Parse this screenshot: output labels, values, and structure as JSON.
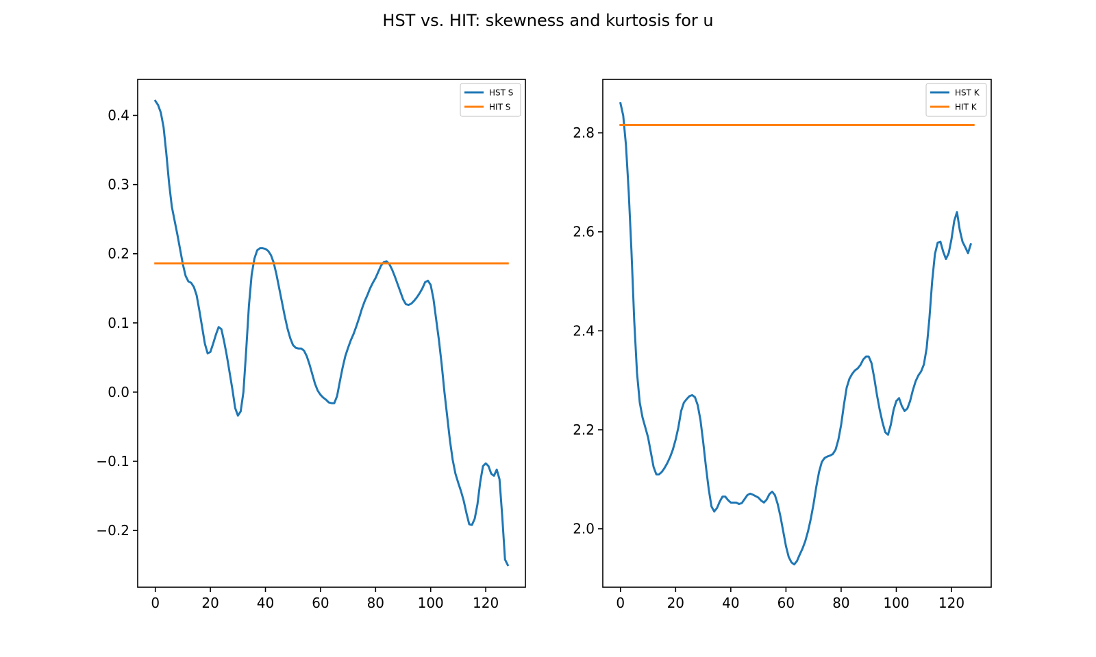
{
  "figure": {
    "title": "HST vs. HIT: skewness and kurtosis for u"
  },
  "chart_data": [
    {
      "type": "line",
      "title": "",
      "xlabel": "",
      "ylabel": "",
      "xlim": [
        -6.4,
        134.4
      ],
      "ylim": [
        -0.282,
        0.452
      ],
      "xticks": [
        0,
        20,
        40,
        60,
        80,
        100,
        120
      ],
      "yticks": [
        -0.2,
        -0.1,
        0.0,
        0.1,
        0.2,
        0.3,
        0.4
      ],
      "ytick_labels": [
        "−0.2",
        "−0.1",
        "0.0",
        "0.1",
        "0.2",
        "0.3",
        "0.4"
      ],
      "legend_position": "upper-right",
      "grid": false,
      "series": [
        {
          "name": "HST S",
          "color": "#1f77b4",
          "points": [
            [
              0,
              0.421
            ],
            [
              1,
              0.415
            ],
            [
              2,
              0.404
            ],
            [
              3,
              0.383
            ],
            [
              4,
              0.345
            ],
            [
              5,
              0.302
            ],
            [
              6,
              0.268
            ],
            [
              8,
              0.228
            ],
            [
              10,
              0.185
            ],
            [
              11,
              0.168
            ],
            [
              12,
              0.16
            ],
            [
              13,
              0.158
            ],
            [
              14,
              0.152
            ],
            [
              15,
              0.14
            ],
            [
              16,
              0.118
            ],
            [
              17,
              0.094
            ],
            [
              18,
              0.07
            ],
            [
              19,
              0.056
            ],
            [
              20,
              0.058
            ],
            [
              21,
              0.07
            ],
            [
              22,
              0.083
            ],
            [
              23,
              0.094
            ],
            [
              24,
              0.091
            ],
            [
              25,
              0.073
            ],
            [
              26,
              0.052
            ],
            [
              27,
              0.028
            ],
            [
              28,
              0.004
            ],
            [
              29,
              -0.023
            ],
            [
              30,
              -0.034
            ],
            [
              31,
              -0.028
            ],
            [
              32,
              0.0
            ],
            [
              33,
              0.06
            ],
            [
              34,
              0.125
            ],
            [
              35,
              0.17
            ],
            [
              36,
              0.193
            ],
            [
              37,
              0.205
            ],
            [
              38,
              0.208
            ],
            [
              39,
              0.208
            ],
            [
              40,
              0.207
            ],
            [
              41,
              0.204
            ],
            [
              42,
              0.198
            ],
            [
              43,
              0.187
            ],
            [
              44,
              0.17
            ],
            [
              45,
              0.15
            ],
            [
              46,
              0.13
            ],
            [
              47,
              0.11
            ],
            [
              48,
              0.092
            ],
            [
              49,
              0.078
            ],
            [
              50,
              0.068
            ],
            [
              51,
              0.064
            ],
            [
              52,
              0.063
            ],
            [
              53,
              0.063
            ],
            [
              54,
              0.06
            ],
            [
              55,
              0.052
            ],
            [
              56,
              0.04
            ],
            [
              57,
              0.026
            ],
            [
              58,
              0.012
            ],
            [
              59,
              0.002
            ],
            [
              60,
              -0.004
            ],
            [
              61,
              -0.008
            ],
            [
              62,
              -0.011
            ],
            [
              63,
              -0.015
            ],
            [
              64,
              -0.016
            ],
            [
              65,
              -0.016
            ],
            [
              66,
              -0.006
            ],
            [
              67,
              0.015
            ],
            [
              68,
              0.035
            ],
            [
              69,
              0.052
            ],
            [
              70,
              0.064
            ],
            [
              71,
              0.075
            ],
            [
              72,
              0.084
            ],
            [
              73,
              0.095
            ],
            [
              74,
              0.107
            ],
            [
              75,
              0.12
            ],
            [
              76,
              0.131
            ],
            [
              77,
              0.14
            ],
            [
              78,
              0.15
            ],
            [
              79,
              0.158
            ],
            [
              80,
              0.165
            ],
            [
              81,
              0.174
            ],
            [
              82,
              0.183
            ],
            [
              83,
              0.188
            ],
            [
              84,
              0.189
            ],
            [
              85,
              0.185
            ],
            [
              86,
              0.177
            ],
            [
              87,
              0.167
            ],
            [
              88,
              0.156
            ],
            [
              89,
              0.145
            ],
            [
              90,
              0.134
            ],
            [
              91,
              0.127
            ],
            [
              92,
              0.126
            ],
            [
              93,
              0.128
            ],
            [
              94,
              0.132
            ],
            [
              95,
              0.137
            ],
            [
              96,
              0.143
            ],
            [
              97,
              0.15
            ],
            [
              98,
              0.159
            ],
            [
              99,
              0.161
            ],
            [
              100,
              0.155
            ],
            [
              101,
              0.135
            ],
            [
              102,
              0.105
            ],
            [
              103,
              0.075
            ],
            [
              104,
              0.04
            ],
            [
              105,
              0.0
            ],
            [
              106,
              -0.035
            ],
            [
              107,
              -0.07
            ],
            [
              108,
              -0.098
            ],
            [
              109,
              -0.118
            ],
            [
              110,
              -0.131
            ],
            [
              111,
              -0.143
            ],
            [
              112,
              -0.157
            ],
            [
              113,
              -0.175
            ],
            [
              114,
              -0.191
            ],
            [
              115,
              -0.192
            ],
            [
              116,
              -0.183
            ],
            [
              117,
              -0.162
            ],
            [
              118,
              -0.13
            ],
            [
              119,
              -0.107
            ],
            [
              120,
              -0.103
            ],
            [
              121,
              -0.107
            ],
            [
              122,
              -0.118
            ],
            [
              123,
              -0.121
            ],
            [
              124,
              -0.112
            ],
            [
              125,
              -0.126
            ],
            [
              126,
              -0.18
            ],
            [
              127,
              -0.242
            ],
            [
              128,
              -0.25
            ]
          ]
        },
        {
          "name": "HIT S",
          "color": "#ff7f0e",
          "points": [
            [
              0,
              0.186
            ],
            [
              128,
              0.186
            ]
          ]
        }
      ]
    },
    {
      "type": "line",
      "title": "",
      "xlabel": "",
      "ylabel": "",
      "xlim": [
        -6.4,
        134.4
      ],
      "ylim": [
        1.882,
        2.908
      ],
      "xticks": [
        0,
        20,
        40,
        60,
        80,
        100,
        120
      ],
      "yticks": [
        2.0,
        2.2,
        2.4,
        2.6,
        2.8
      ],
      "ytick_labels": [
        "2.0",
        "2.2",
        "2.4",
        "2.6",
        "2.8"
      ],
      "legend_position": "upper-right",
      "grid": false,
      "series": [
        {
          "name": "HST K",
          "color": "#1f77b4",
          "points": [
            [
              0,
              2.86
            ],
            [
              1,
              2.835
            ],
            [
              2,
              2.775
            ],
            [
              3,
              2.68
            ],
            [
              4,
              2.56
            ],
            [
              5,
              2.42
            ],
            [
              6,
              2.315
            ],
            [
              7,
              2.255
            ],
            [
              8,
              2.225
            ],
            [
              9,
              2.205
            ],
            [
              10,
              2.185
            ],
            [
              11,
              2.155
            ],
            [
              12,
              2.125
            ],
            [
              13,
              2.11
            ],
            [
              14,
              2.11
            ],
            [
              15,
              2.115
            ],
            [
              16,
              2.123
            ],
            [
              17,
              2.133
            ],
            [
              18,
              2.145
            ],
            [
              19,
              2.16
            ],
            [
              20,
              2.18
            ],
            [
              21,
              2.205
            ],
            [
              22,
              2.238
            ],
            [
              23,
              2.255
            ],
            [
              24,
              2.262
            ],
            [
              25,
              2.268
            ],
            [
              26,
              2.27
            ],
            [
              27,
              2.266
            ],
            [
              28,
              2.25
            ],
            [
              29,
              2.22
            ],
            [
              30,
              2.175
            ],
            [
              31,
              2.125
            ],
            [
              32,
              2.08
            ],
            [
              33,
              2.045
            ],
            [
              34,
              2.035
            ],
            [
              35,
              2.042
            ],
            [
              36,
              2.055
            ],
            [
              37,
              2.065
            ],
            [
              38,
              2.065
            ],
            [
              39,
              2.058
            ],
            [
              40,
              2.053
            ],
            [
              41,
              2.053
            ],
            [
              42,
              2.053
            ],
            [
              43,
              2.05
            ],
            [
              44,
              2.052
            ],
            [
              45,
              2.06
            ],
            [
              46,
              2.068
            ],
            [
              47,
              2.071
            ],
            [
              48,
              2.069
            ],
            [
              49,
              2.066
            ],
            [
              50,
              2.063
            ],
            [
              51,
              2.057
            ],
            [
              52,
              2.053
            ],
            [
              53,
              2.059
            ],
            [
              54,
              2.07
            ],
            [
              55,
              2.075
            ],
            [
              56,
              2.068
            ],
            [
              57,
              2.05
            ],
            [
              58,
              2.025
            ],
            [
              59,
              1.995
            ],
            [
              60,
              1.965
            ],
            [
              61,
              1.943
            ],
            [
              62,
              1.932
            ],
            [
              63,
              1.928
            ],
            [
              64,
              1.935
            ],
            [
              65,
              1.948
            ],
            [
              66,
              1.96
            ],
            [
              67,
              1.975
            ],
            [
              68,
              1.995
            ],
            [
              69,
              2.02
            ],
            [
              70,
              2.05
            ],
            [
              71,
              2.085
            ],
            [
              72,
              2.115
            ],
            [
              73,
              2.135
            ],
            [
              74,
              2.143
            ],
            [
              75,
              2.146
            ],
            [
              76,
              2.148
            ],
            [
              77,
              2.151
            ],
            [
              78,
              2.16
            ],
            [
              79,
              2.18
            ],
            [
              80,
              2.21
            ],
            [
              81,
              2.25
            ],
            [
              82,
              2.285
            ],
            [
              83,
              2.303
            ],
            [
              84,
              2.313
            ],
            [
              85,
              2.32
            ],
            [
              86,
              2.324
            ],
            [
              87,
              2.331
            ],
            [
              88,
              2.342
            ],
            [
              89,
              2.348
            ],
            [
              90,
              2.348
            ],
            [
              91,
              2.335
            ],
            [
              92,
              2.305
            ],
            [
              93,
              2.27
            ],
            [
              94,
              2.24
            ],
            [
              95,
              2.215
            ],
            [
              96,
              2.195
            ],
            [
              97,
              2.19
            ],
            [
              98,
              2.21
            ],
            [
              99,
              2.24
            ],
            [
              100,
              2.258
            ],
            [
              101,
              2.264
            ],
            [
              102,
              2.248
            ],
            [
              103,
              2.238
            ],
            [
              104,
              2.243
            ],
            [
              105,
              2.258
            ],
            [
              106,
              2.28
            ],
            [
              107,
              2.298
            ],
            [
              108,
              2.31
            ],
            [
              109,
              2.318
            ],
            [
              110,
              2.332
            ],
            [
              111,
              2.365
            ],
            [
              112,
              2.425
            ],
            [
              113,
              2.5
            ],
            [
              114,
              2.555
            ],
            [
              115,
              2.578
            ],
            [
              116,
              2.58
            ],
            [
              117,
              2.56
            ],
            [
              118,
              2.545
            ],
            [
              119,
              2.557
            ],
            [
              120,
              2.585
            ],
            [
              121,
              2.622
            ],
            [
              122,
              2.64
            ],
            [
              123,
              2.604
            ],
            [
              124,
              2.58
            ],
            [
              125,
              2.569
            ],
            [
              126,
              2.557
            ],
            [
              127,
              2.575
            ]
          ]
        },
        {
          "name": "HIT K",
          "color": "#ff7f0e",
          "points": [
            [
              0,
              2.816
            ],
            [
              128,
              2.816
            ]
          ]
        }
      ]
    }
  ]
}
